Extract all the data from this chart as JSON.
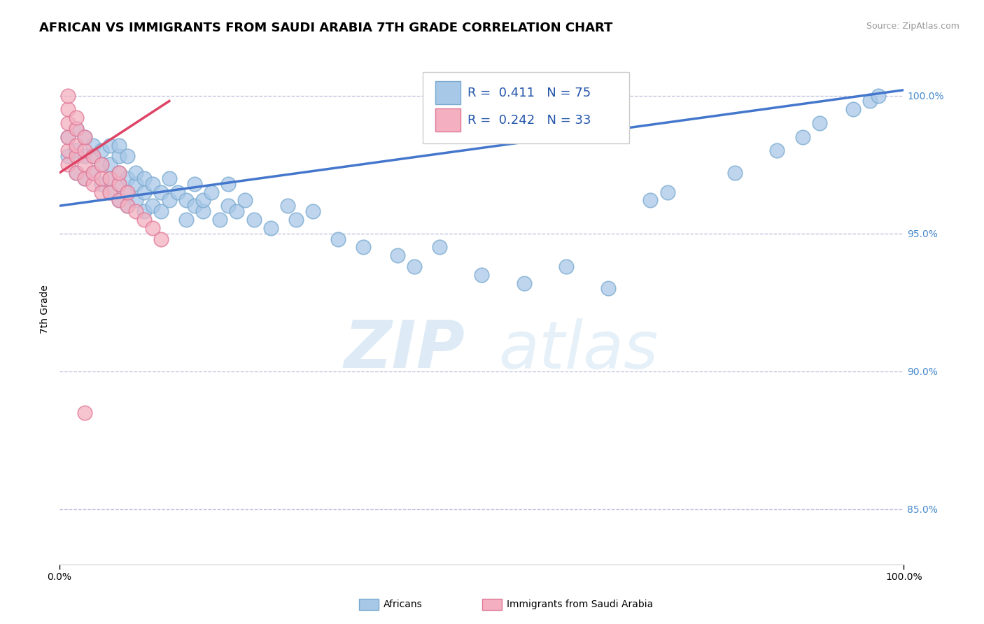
{
  "title": "AFRICAN VS IMMIGRANTS FROM SAUDI ARABIA 7TH GRADE CORRELATION CHART",
  "source": "Source: ZipAtlas.com",
  "ylabel": "7th Grade",
  "xlim": [
    0,
    100
  ],
  "ylim": [
    83.0,
    101.5
  ],
  "yticks": [
    85.0,
    90.0,
    95.0,
    100.0
  ],
  "ytick_labels": [
    "85.0%",
    "90.0%",
    "95.0%",
    "100.0%"
  ],
  "xtick_positions": [
    0,
    100
  ],
  "xtick_labels": [
    "0.0%",
    "100.0%"
  ],
  "blue_color": "#A8C8E8",
  "blue_edge_color": "#7AAAD0",
  "pink_color": "#F4B0C0",
  "pink_edge_color": "#E07898",
  "blue_line_color": "#4477CC",
  "pink_line_color": "#DD4466",
  "legend_line1": "R =  0.411   N = 75",
  "legend_line2": "R =  0.242   N = 33",
  "blue_scatter_x": [
    1,
    1,
    2,
    2,
    2,
    3,
    3,
    3,
    4,
    4,
    4,
    5,
    5,
    5,
    6,
    6,
    6,
    6,
    7,
    7,
    7,
    7,
    7,
    8,
    8,
    8,
    8,
    9,
    9,
    9,
    10,
    10,
    10,
    11,
    11,
    12,
    12,
    13,
    13,
    14,
    15,
    15,
    16,
    16,
    17,
    17,
    18,
    19,
    20,
    20,
    21,
    22,
    23,
    25,
    27,
    28,
    30,
    33,
    36,
    40,
    42,
    45,
    50,
    55,
    60,
    65,
    70,
    72,
    80,
    85,
    88,
    90,
    94,
    96,
    97
  ],
  "blue_scatter_y": [
    97.8,
    98.5,
    97.2,
    98.0,
    98.8,
    97.0,
    97.8,
    98.5,
    97.2,
    97.8,
    98.2,
    96.8,
    97.5,
    98.0,
    96.5,
    97.0,
    97.5,
    98.2,
    96.2,
    96.8,
    97.2,
    97.8,
    98.2,
    96.0,
    96.5,
    97.0,
    97.8,
    96.2,
    96.8,
    97.2,
    95.8,
    96.5,
    97.0,
    96.0,
    96.8,
    95.8,
    96.5,
    96.2,
    97.0,
    96.5,
    95.5,
    96.2,
    96.0,
    96.8,
    95.8,
    96.2,
    96.5,
    95.5,
    96.0,
    96.8,
    95.8,
    96.2,
    95.5,
    95.2,
    96.0,
    95.5,
    95.8,
    94.8,
    94.5,
    94.2,
    93.8,
    94.5,
    93.5,
    93.2,
    93.8,
    93.0,
    96.2,
    96.5,
    97.2,
    98.0,
    98.5,
    99.0,
    99.5,
    99.8,
    100.0
  ],
  "pink_scatter_x": [
    1,
    1,
    1,
    1,
    1,
    1,
    2,
    2,
    2,
    2,
    2,
    3,
    3,
    3,
    3,
    4,
    4,
    4,
    5,
    5,
    5,
    6,
    6,
    7,
    7,
    7,
    8,
    8,
    9,
    10,
    11,
    12,
    3
  ],
  "pink_scatter_y": [
    97.5,
    98.0,
    98.5,
    99.0,
    99.5,
    100.0,
    97.2,
    97.8,
    98.2,
    98.8,
    99.2,
    97.0,
    97.5,
    98.0,
    98.5,
    96.8,
    97.2,
    97.8,
    96.5,
    97.0,
    97.5,
    96.5,
    97.0,
    96.2,
    96.8,
    97.2,
    96.0,
    96.5,
    95.8,
    95.5,
    95.2,
    94.8,
    88.5
  ],
  "blue_line_x0": 0,
  "blue_line_y0": 96.0,
  "blue_line_x1": 100,
  "blue_line_y1": 100.2,
  "pink_line_x0": 0,
  "pink_line_y0": 97.2,
  "pink_line_x1": 13,
  "pink_line_y1": 99.8,
  "watermark_zip": "ZIP",
  "watermark_atlas": "atlas",
  "background_color": "#FFFFFF",
  "grid_color": "#BBBBDD",
  "title_fontsize": 13,
  "axis_label_fontsize": 10,
  "tick_fontsize": 10,
  "source_fontsize": 9,
  "legend_fontsize": 13,
  "bottom_legend_blue_label": "Africans",
  "bottom_legend_pink_label": "Immigrants from Saudi Arabia"
}
